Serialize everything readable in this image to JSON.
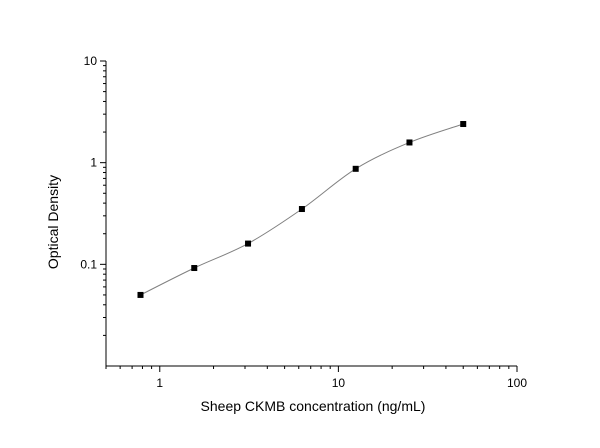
{
  "chart_data": {
    "type": "scatter",
    "title": "",
    "xlabel": "Sheep CKMB concentration (ng/mL)",
    "ylabel": "Optical Density",
    "x_scale": "log",
    "y_scale": "log",
    "xlim": [
      0.5,
      100
    ],
    "ylim": [
      0.01,
      10
    ],
    "x_ticks": [
      1,
      10,
      100
    ],
    "x_tick_labels": [
      "1",
      "10",
      "100"
    ],
    "y_ticks": [
      0.1,
      1,
      10
    ],
    "y_tick_labels": [
      "0.1",
      "1",
      "10"
    ],
    "grid": false,
    "legend": "none",
    "series": [
      {
        "x": [
          0.78,
          1.56,
          3.12,
          6.25,
          12.5,
          25,
          50
        ],
        "y": [
          0.05,
          0.092,
          0.16,
          0.35,
          0.87,
          1.58,
          2.4
        ]
      }
    ],
    "fit_curve": true,
    "colors": {
      "marker": "#000000",
      "curve": "#808080",
      "axis": "#000000"
    }
  }
}
